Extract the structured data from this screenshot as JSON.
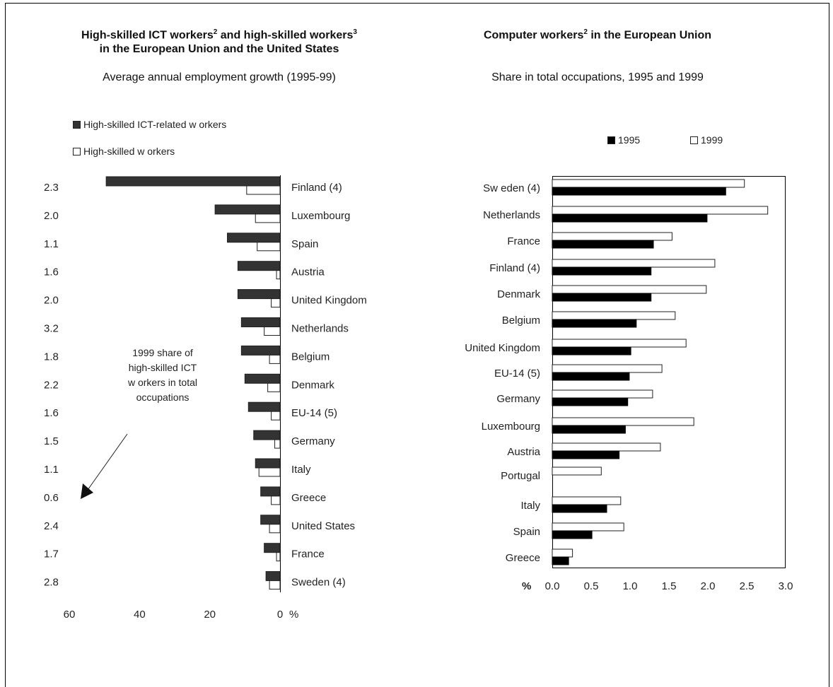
{
  "chart_data": [
    {
      "type": "bar",
      "orientation": "horizontal",
      "title_line1": "High-skilled ICT workers",
      "title_sup1": "2",
      "title_mid": " and high-skilled workers",
      "title_sup2": "3",
      "title_line2": "in the European Union and the United States",
      "subtitle": "Average annual employment growth (1995-99)",
      "categories": [
        "Finland (4)",
        "Luxembourg",
        "Spain",
        "Austria",
        "United Kingdom",
        "Netherlands",
        "Belgium",
        "Denmark",
        "EU-14 (5)",
        "Germany",
        "Italy",
        "Greece",
        "United States",
        "France",
        "Sweden (4)"
      ],
      "share_labels": [
        "2.3",
        "2.0",
        "1.1",
        "1.6",
        "2.0",
        "3.2",
        "1.8",
        "2.2",
        "1.6",
        "1.5",
        "1.1",
        "0.6",
        "2.4",
        "1.7",
        "2.8"
      ],
      "series": [
        {
          "name": "High-skilled ICT-related w orkers",
          "color": "#333333",
          "values": [
            49.5,
            18.5,
            15,
            12,
            12,
            11,
            11,
            10,
            9,
            7.5,
            7,
            5.5,
            5.5,
            4.5,
            4
          ]
        },
        {
          "name": "High-skilled w orkers",
          "color": "#ffffff",
          "values": [
            9.5,
            7,
            6.5,
            1,
            2.5,
            4.5,
            3,
            3.5,
            2.5,
            1.5,
            6,
            2.5,
            3,
            1,
            3
          ]
        }
      ],
      "xlim": [
        60,
        0
      ],
      "xticks": [
        "60",
        "40",
        "20",
        "0"
      ],
      "xunit": "%",
      "annotation": [
        "1999 share of",
        "high-skilled ICT",
        "w orkers in total",
        "occupations"
      ],
      "legend": "top-left",
      "grid": false
    },
    {
      "type": "bar",
      "orientation": "horizontal",
      "title_line1": "Computer workers",
      "title_sup1": "2",
      "title_rest": " in the European Union",
      "subtitle": "Share in total occupations, 1995 and 1999",
      "categories": [
        "Sw eden (4)",
        "Netherlands",
        "France",
        "Finland (4)",
        "Denmark",
        "Belgium",
        "United Kingdom",
        "EU-14 (5)",
        "Germany",
        "Luxembourg",
        "Austria",
        "Portugal",
        "Italy",
        "Spain",
        "Greece"
      ],
      "series": [
        {
          "name": "1995",
          "color": "#000000",
          "values": [
            2.23,
            1.99,
            1.3,
            1.27,
            1.27,
            1.08,
            1.01,
            0.99,
            0.97,
            0.94,
            0.86,
            0,
            0.7,
            0.51,
            0.21
          ]
        },
        {
          "name": "1999",
          "color": "#ffffff",
          "values": [
            2.47,
            2.77,
            1.54,
            2.09,
            1.98,
            1.58,
            1.72,
            1.41,
            1.29,
            1.82,
            1.39,
            0.63,
            0.88,
            0.92,
            0.26
          ]
        }
      ],
      "xlim": [
        0,
        3.0
      ],
      "xticks": [
        "0.0",
        "0.5",
        "1.0",
        "1.5",
        "2.0",
        "2.5",
        "3.0"
      ],
      "xunit": "%",
      "legend": "top-center",
      "grid": false
    }
  ]
}
